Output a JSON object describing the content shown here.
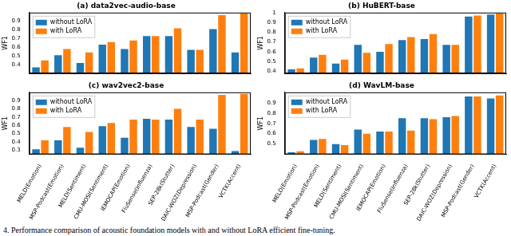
{
  "caption": "4.  Performance comparison of acoustic foundation models with and without LoRA efficient fine-tuning.",
  "chart_data": [
    {
      "type": "bar",
      "title": "(a) data2vec-audio-base",
      "y_label": "WF1",
      "categories": [
        null,
        null,
        null,
        null,
        null,
        null,
        null,
        null,
        null,
        null
      ],
      "series": [
        {
          "name": "without LoRA",
          "color": "#1f77b4",
          "values": [
            0.37,
            0.51,
            0.42,
            0.63,
            0.58,
            0.73,
            0.73,
            0.57,
            0.81,
            0.54
          ]
        },
        {
          "name": "with LoRA",
          "color": "#ff7f0e",
          "values": [
            0.45,
            0.58,
            0.54,
            0.66,
            0.68,
            0.73,
            0.82,
            0.57,
            0.97,
            0.99
          ]
        }
      ],
      "ylim": [
        0.3,
        1.0
      ],
      "yticks": [
        0.4,
        0.5,
        0.6,
        0.7,
        0.8,
        0.9
      ],
      "grid": false,
      "legend": "upper left",
      "tick_labels": "y"
    },
    {
      "type": "bar",
      "title": "(b) HuBERT-base",
      "y_label": "WF1",
      "categories": [
        null,
        null,
        null,
        null,
        null,
        null,
        null,
        null,
        null,
        null
      ],
      "series": [
        {
          "name": "without LoRA",
          "color": "#1f77b4",
          "values": [
            0.42,
            0.54,
            0.48,
            0.67,
            0.6,
            0.72,
            0.73,
            0.67,
            0.96,
            0.98
          ]
        },
        {
          "name": "with LoRA",
          "color": "#ff7f0e",
          "values": [
            0.43,
            0.57,
            0.52,
            0.59,
            0.68,
            0.75,
            0.78,
            0.67,
            0.97,
            0.99
          ]
        }
      ],
      "ylim": [
        0.38,
        1.0
      ],
      "yticks": [
        0.4,
        0.5,
        0.6,
        0.7,
        0.8,
        0.9,
        1.0
      ],
      "grid": false,
      "legend": "upper left",
      "tick_labels": "y"
    },
    {
      "type": "bar",
      "title": "(c) wav2vec2-base",
      "y_label": "WF1",
      "categories": [
        "MELD(Emotion)",
        "MSP-Podcast(Emotion)",
        "MELD(Sentiment)",
        "CMU-MOSI(Sentiment)",
        "IEMOCAP(Emotion)",
        "FluSense(Influenza)",
        "SEP-28k(Stutter)",
        "DAIC-WOZ(Depression)",
        "MSP-Podcast(Gender)",
        "VCTK(Accent)"
      ],
      "series": [
        {
          "name": "without LoRA",
          "color": "#1f77b4",
          "values": [
            0.31,
            0.42,
            0.33,
            0.59,
            0.45,
            0.68,
            0.67,
            0.58,
            0.56,
            0.29
          ]
        },
        {
          "name": "with LoRA",
          "color": "#ff7f0e",
          "values": [
            0.42,
            0.58,
            0.52,
            0.63,
            0.67,
            0.67,
            0.8,
            0.67,
            0.97,
            0.98
          ]
        }
      ],
      "ylim": [
        0.25,
        1.0
      ],
      "yticks": [
        0.3,
        0.4,
        0.5,
        0.6,
        0.7,
        0.8,
        0.9
      ],
      "grid": false,
      "legend": "upper left"
    },
    {
      "type": "bar",
      "title": "(d) WavLM-base",
      "y_label": "WF1",
      "categories": [
        "MELD(Emotion)",
        "MSP-Podcast(Emotion)",
        "MELD(Sentiment)",
        "CMU-MOSI(Sentiment)",
        "IEMOCAP(Emotion)",
        "FluSense(Influenza)",
        "SEP-28k(Stutter)",
        "DAIC-WOZ(Depression)",
        "MSP-Podcast(Gender)",
        "VCTK(Accent)"
      ],
      "series": [
        {
          "name": "without LoRA",
          "color": "#1f77b4",
          "values": [
            0.42,
            0.54,
            0.5,
            0.64,
            0.62,
            0.75,
            0.75,
            0.76,
            0.96,
            0.94
          ]
        },
        {
          "name": "with LoRA",
          "color": "#ff7f0e",
          "values": [
            0.43,
            0.55,
            0.49,
            0.6,
            0.62,
            0.63,
            0.74,
            0.77,
            0.96,
            0.97
          ]
        }
      ],
      "ylim": [
        0.4,
        1.0
      ],
      "yticks": [
        0.5,
        0.6,
        0.7,
        0.8,
        0.9
      ],
      "grid": false,
      "legend": "upper left"
    }
  ]
}
